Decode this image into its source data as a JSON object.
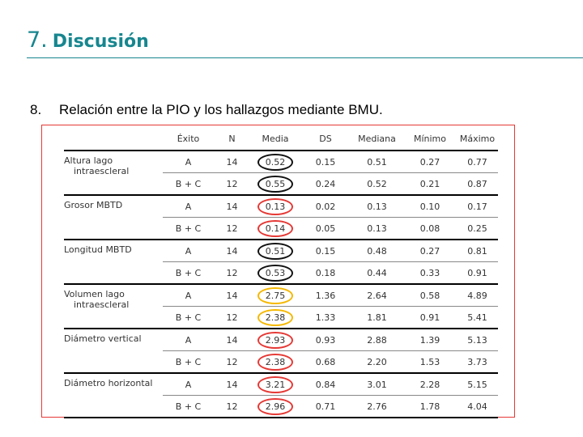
{
  "header": {
    "number": "7.",
    "title": "Discusión"
  },
  "subtitle": {
    "number": "8.",
    "text": "Relación entre la PIO y los hallazgos mediante BMU."
  },
  "table": {
    "columns": [
      "Éxito",
      "N",
      "Media",
      "DS",
      "Mediana",
      "Mínimo",
      "Máximo"
    ],
    "groups": [
      {
        "label": "Altura lago",
        "label2": "intraescleral",
        "highlight": "#111111",
        "rows": [
          {
            "exito": "A",
            "n": "14",
            "media": "0.52",
            "ds": "0.15",
            "mediana": "0.51",
            "minimo": "0.27",
            "maximo": "0.77"
          },
          {
            "exito": "B + C",
            "n": "12",
            "media": "0.55",
            "ds": "0.24",
            "mediana": "0.52",
            "minimo": "0.21",
            "maximo": "0.87"
          }
        ]
      },
      {
        "label": "Grosor MBTD",
        "label2": "",
        "highlight": "#e53935",
        "rows": [
          {
            "exito": "A",
            "n": "14",
            "media": "0.13",
            "ds": "0.02",
            "mediana": "0.13",
            "minimo": "0.10",
            "maximo": "0.17"
          },
          {
            "exito": "B + C",
            "n": "12",
            "media": "0.14",
            "ds": "0.05",
            "mediana": "0.13",
            "minimo": "0.08",
            "maximo": "0.25"
          }
        ]
      },
      {
        "label": "Longitud MBTD",
        "label2": "",
        "highlight": "#111111",
        "rows": [
          {
            "exito": "A",
            "n": "14",
            "media": "0.51",
            "ds": "0.15",
            "mediana": "0.48",
            "minimo": "0.27",
            "maximo": "0.81"
          },
          {
            "exito": "B + C",
            "n": "12",
            "media": "0.53",
            "ds": "0.18",
            "mediana": "0.44",
            "minimo": "0.33",
            "maximo": "0.91"
          }
        ]
      },
      {
        "label": "Volumen lago",
        "label2": "intraescleral",
        "highlight": "#f5b800",
        "rows": [
          {
            "exito": "A",
            "n": "14",
            "media": "2.75",
            "ds": "1.36",
            "mediana": "2.64",
            "minimo": "0.58",
            "maximo": "4.89"
          },
          {
            "exito": "B + C",
            "n": "12",
            "media": "2.38",
            "ds": "1.33",
            "mediana": "1.81",
            "minimo": "0.91",
            "maximo": "5.41"
          }
        ]
      },
      {
        "label": "Diámetro vertical",
        "label2": "",
        "highlight": "#e53935",
        "rows": [
          {
            "exito": "A",
            "n": "14",
            "media": "2.93",
            "ds": "0.93",
            "mediana": "2.88",
            "minimo": "1.39",
            "maximo": "5.13"
          },
          {
            "exito": "B + C",
            "n": "12",
            "media": "2.38",
            "ds": "0.68",
            "mediana": "2.20",
            "minimo": "1.53",
            "maximo": "3.73"
          }
        ]
      },
      {
        "label": "Diámetro horizontal",
        "label2": "",
        "highlight": "#e53935",
        "rows": [
          {
            "exito": "A",
            "n": "14",
            "media": "3.21",
            "ds": "0.84",
            "mediana": "3.01",
            "minimo": "2.28",
            "maximo": "5.15"
          },
          {
            "exito": "B + C",
            "n": "12",
            "media": "2.96",
            "ds": "0.71",
            "mediana": "2.76",
            "minimo": "1.78",
            "maximo": "4.04"
          }
        ]
      }
    ]
  }
}
